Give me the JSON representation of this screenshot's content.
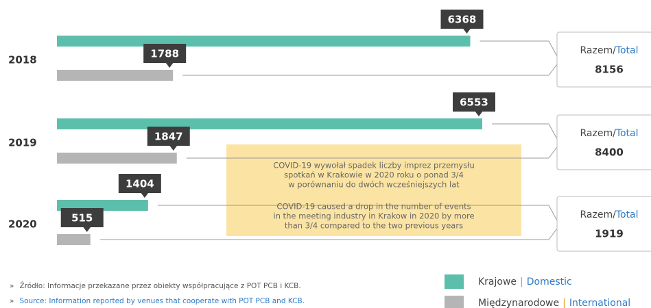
{
  "chart_data": {
    "type": "bar",
    "categories": [
      "2018",
      "2019",
      "2020"
    ],
    "series": [
      {
        "name": "Krajowe",
        "name_en": "Domestic",
        "color": "#5cbfab",
        "values": [
          6368,
          6553,
          1404
        ]
      },
      {
        "name": "Międzynarodowe",
        "name_en": "International",
        "color": "#b5b5b5",
        "values": [
          1788,
          1847,
          515
        ]
      }
    ],
    "totals": [
      8156,
      8400,
      1919
    ],
    "total_label": "Razem/",
    "total_label_en": "Total",
    "separator": "|",
    "annotation": {
      "pl": [
        "COVID-19 wywołał spadek liczby imprez przemysłu",
        "spotkań w Krakowie w 2020 roku o ponad 3/4",
        "w porównaniu do dwóch wcześniejszych lat"
      ],
      "en": [
        "COVID-19 caused a drop in the number of events",
        "in the meeting industry in Krakow in 2020 by more",
        "than 3/4 compared to the two previous years"
      ]
    },
    "bullet": "»",
    "source": {
      "pl": "Źródło: Informacje przekazane przez obiekty współpracujące z POT PCB i KCB.",
      "en": "Source: Information reported by venues that cooperate with POT PCB and KCB."
    }
  }
}
